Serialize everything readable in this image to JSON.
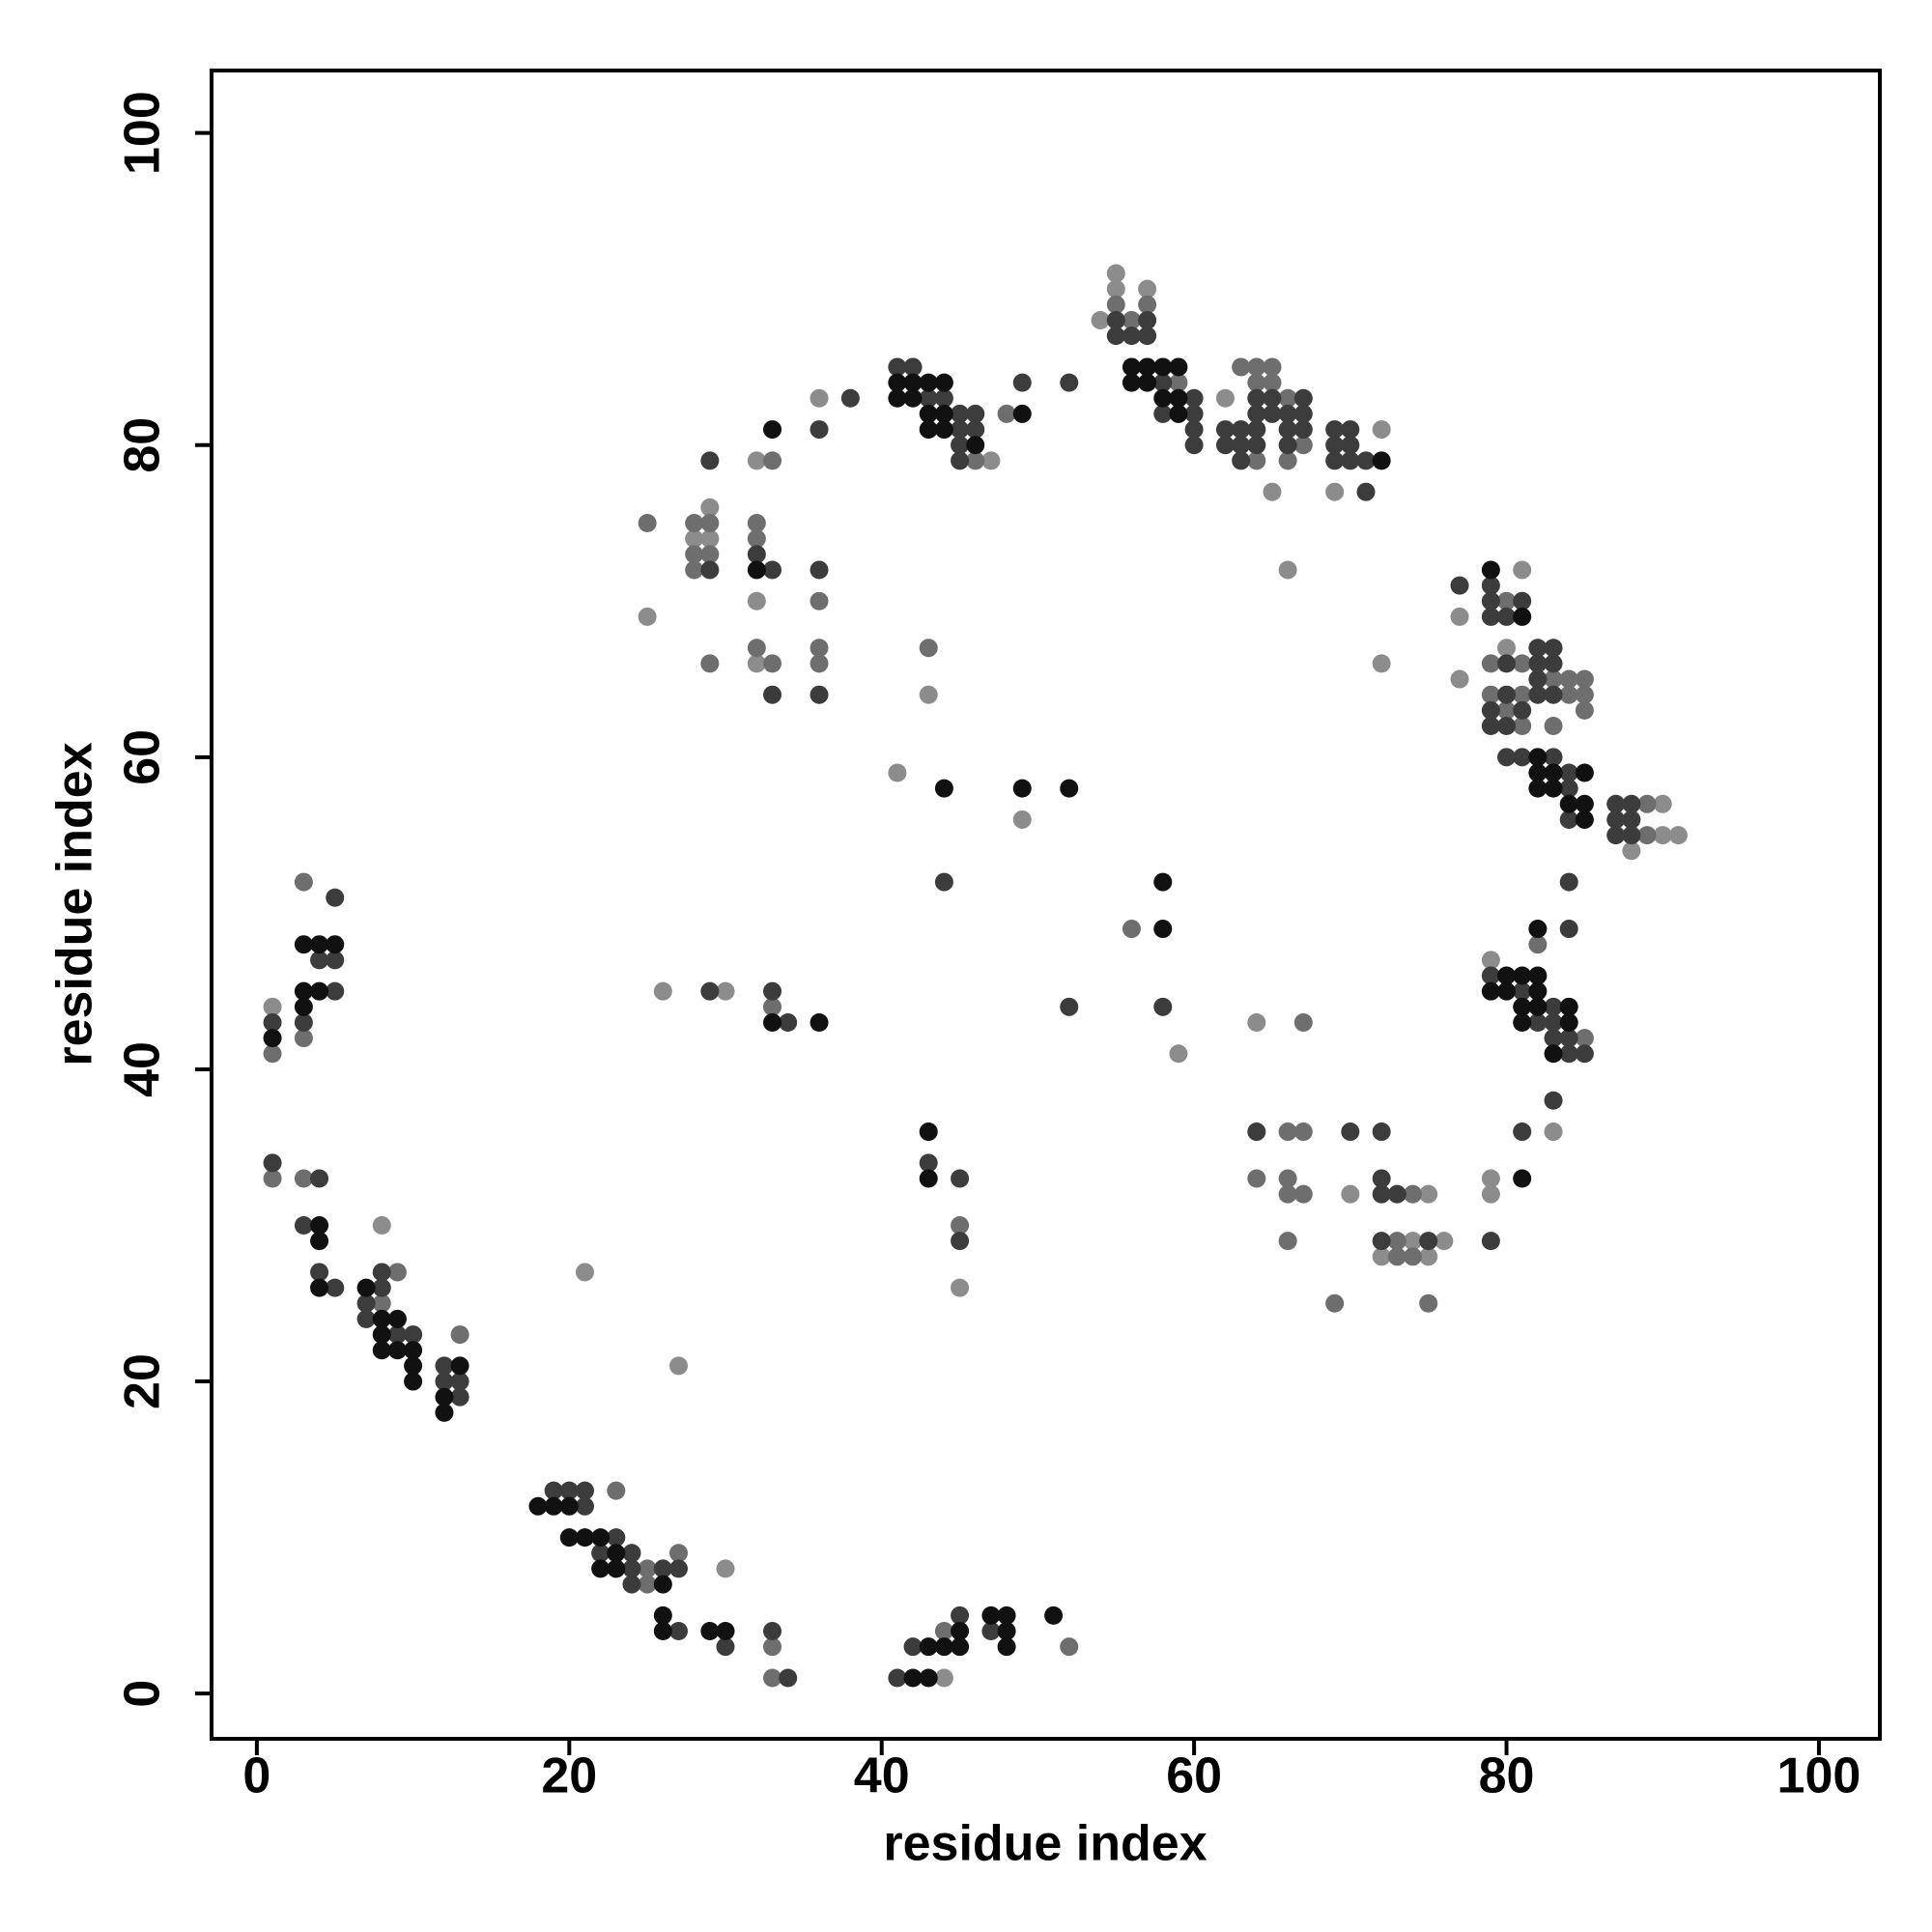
{
  "chart_data": {
    "type": "scatter",
    "xlabel": "residue index",
    "ylabel": "residue index",
    "xlim": [
      -2.9,
      103.9
    ],
    "ylim": [
      -2.9,
      104
    ],
    "xticks": [
      0,
      20,
      40,
      60,
      80,
      100
    ],
    "yticks": [
      0,
      20,
      40,
      60,
      80,
      100
    ],
    "grid": false,
    "series": [
      {
        "color": "#8c8c8c",
        "x": [
          1,
          8,
          21,
          27,
          30,
          44,
          26,
          30,
          45,
          49,
          41,
          59,
          64,
          25,
          28,
          29,
          29,
          32,
          32,
          32,
          36,
          43,
          47,
          54,
          55,
          55,
          57,
          62,
          65,
          72,
          69,
          72,
          66,
          77,
          77,
          81,
          80,
          90,
          90,
          91,
          88,
          79,
          83,
          79,
          79,
          70,
          75,
          74,
          76,
          72,
          75
        ],
        "values": [
          44,
          30,
          27,
          21,
          8,
          1,
          45,
          45,
          26,
          56,
          59,
          41,
          43,
          69,
          74,
          76,
          74,
          70,
          66,
          79,
          83,
          64,
          79,
          88,
          91,
          90,
          90,
          83,
          77,
          81,
          77,
          66,
          72,
          69,
          65,
          72,
          67,
          57,
          55,
          55,
          54,
          47,
          36,
          33,
          32,
          32,
          32,
          29,
          29,
          28,
          28
        ]
      },
      {
        "color": "#6e6e6e",
        "x": [
          1,
          3,
          3,
          1,
          3,
          8,
          9,
          13,
          23,
          25,
          25,
          27,
          33,
          33,
          44,
          52,
          33,
          45,
          56,
          67,
          25,
          28,
          28,
          28,
          29,
          29,
          29,
          32,
          32,
          32,
          33,
          33,
          36,
          36,
          36,
          43,
          46,
          48,
          55,
          56,
          57,
          59,
          63,
          64,
          65,
          64,
          65,
          66,
          64,
          67,
          66,
          80,
          79,
          81,
          79,
          80,
          81,
          81,
          83,
          84,
          84,
          85,
          85,
          85,
          83,
          89,
          89,
          82,
          85,
          66,
          67,
          64,
          66,
          66,
          67,
          66,
          69,
          74,
          73,
          73,
          74,
          75
        ],
        "values": [
          41,
          52,
          42,
          33,
          33,
          25,
          27,
          23,
          13,
          7,
          8,
          9,
          3,
          1,
          4,
          3,
          44,
          30,
          49,
          43,
          75,
          75,
          73,
          72,
          75,
          73,
          66,
          75,
          74,
          67,
          66,
          79,
          70,
          67,
          66,
          67,
          79,
          82,
          89,
          88,
          89,
          84,
          85,
          85,
          85,
          84,
          84,
          83,
          79,
          80,
          79,
          70,
          66,
          66,
          64,
          63,
          64,
          62,
          65,
          65,
          64,
          65,
          64,
          63,
          62,
          57,
          55,
          48,
          42,
          36,
          36,
          33,
          33,
          32,
          32,
          29,
          25,
          32,
          29,
          28,
          28,
          25
        ]
      },
      {
        "color": "#3c3c3c",
        "x": [
          1,
          3,
          4,
          5,
          5,
          5,
          1,
          4,
          3,
          4,
          5,
          8,
          7,
          7,
          8,
          9,
          10,
          12,
          12,
          13,
          13,
          19,
          20,
          21,
          21,
          23,
          22,
          24,
          24,
          24,
          26,
          27,
          27,
          30,
          33,
          34,
          41,
          42,
          45,
          47,
          29,
          33,
          34,
          43,
          45,
          45,
          44,
          52,
          58,
          29,
          29,
          32,
          33,
          33,
          36,
          36,
          36,
          38,
          41,
          42,
          43,
          44,
          45,
          46,
          45,
          46,
          45,
          45,
          49,
          52,
          55,
          55,
          56,
          57,
          57,
          58,
          60,
          58,
          60,
          60,
          60,
          62,
          63,
          64,
          62,
          63,
          64,
          63,
          64,
          65,
          67,
          64,
          65,
          66,
          67,
          66,
          66,
          67,
          69,
          70,
          69,
          70,
          69,
          70,
          71,
          71,
          77,
          79,
          79,
          79,
          80,
          81,
          80,
          82,
          83,
          79,
          79,
          80,
          80,
          81,
          82,
          82,
          82,
          83,
          83,
          80,
          81,
          83,
          84,
          84,
          84,
          87,
          88,
          87,
          88,
          87,
          88,
          84,
          84,
          79,
          81,
          82,
          83,
          83,
          83,
          84,
          84,
          85,
          83,
          81,
          79,
          64,
          70,
          72,
          72,
          72,
          73,
          72,
          75
        ],
        "values": [
          43,
          43,
          47,
          51,
          47,
          45,
          34,
          33,
          30,
          27,
          26,
          26,
          25,
          24,
          27,
          23,
          23,
          21,
          20,
          20,
          19,
          13,
          13,
          13,
          12,
          10,
          9,
          9,
          8,
          7,
          8,
          8,
          4,
          3,
          4,
          1,
          1,
          3,
          5,
          4,
          45,
          45,
          43,
          34,
          33,
          29,
          52,
          44,
          44,
          72,
          79,
          73,
          72,
          64,
          72,
          64,
          81,
          83,
          85,
          85,
          83,
          83,
          82,
          82,
          81,
          81,
          80,
          79,
          84,
          84,
          88,
          87,
          87,
          88,
          87,
          84,
          83,
          82,
          82,
          81,
          80,
          81,
          81,
          81,
          80,
          80,
          80,
          79,
          83,
          83,
          83,
          82,
          82,
          82,
          82,
          80,
          81,
          81,
          81,
          81,
          80,
          80,
          79,
          79,
          79,
          77,
          71,
          71,
          70,
          69,
          69,
          70,
          66,
          67,
          67,
          63,
          62,
          64,
          62,
          63,
          66,
          65,
          64,
          66,
          64,
          60,
          60,
          60,
          59,
          58,
          56,
          57,
          57,
          56,
          56,
          55,
          55,
          52,
          49,
          46,
          45,
          43,
          44,
          43,
          42,
          42,
          41,
          41,
          38,
          36,
          29,
          36,
          36,
          36,
          33,
          32,
          32,
          29,
          29
        ]
      },
      {
        "color": "#111111",
        "x": [
          1,
          3,
          3,
          3,
          4,
          4,
          5,
          4,
          4,
          4,
          7,
          8,
          9,
          8,
          9,
          8,
          10,
          10,
          10,
          13,
          12,
          12,
          18,
          19,
          20,
          20,
          21,
          22,
          23,
          22,
          23,
          26,
          26,
          26,
          29,
          30,
          42,
          43,
          43,
          44,
          45,
          45,
          47,
          48,
          48,
          48,
          51,
          33,
          36,
          43,
          43,
          44,
          49,
          52,
          58,
          58,
          32,
          33,
          41,
          42,
          43,
          44,
          41,
          42,
          43,
          44,
          43,
          44,
          46,
          49,
          56,
          57,
          58,
          59,
          56,
          57,
          58,
          59,
          59,
          72,
          79,
          81,
          82,
          82,
          82,
          83,
          83,
          85,
          84,
          85,
          85,
          82,
          79,
          80,
          80,
          81,
          82,
          82,
          81,
          82,
          81,
          84,
          84,
          83,
          81
        ],
        "values": [
          42,
          48,
          45,
          44,
          48,
          45,
          48,
          30,
          29,
          26,
          26,
          24,
          24,
          23,
          22,
          22,
          22,
          21,
          20,
          21,
          19,
          18,
          12,
          12,
          12,
          10,
          10,
          10,
          9,
          8,
          8,
          7,
          5,
          4,
          4,
          4,
          1,
          1,
          3,
          3,
          3,
          4,
          5,
          5,
          4,
          3,
          5,
          43,
          43,
          36,
          33,
          58,
          58,
          58,
          52,
          49,
          72,
          81,
          84,
          84,
          84,
          84,
          83,
          83,
          82,
          82,
          81,
          81,
          80,
          82,
          85,
          85,
          85,
          85,
          84,
          84,
          83,
          83,
          82,
          79,
          72,
          69,
          60,
          59,
          58,
          58,
          59,
          59,
          57,
          57,
          56,
          49,
          45,
          46,
          45,
          46,
          46,
          45,
          44,
          44,
          43,
          44,
          43,
          41,
          33
        ]
      }
    ]
  }
}
